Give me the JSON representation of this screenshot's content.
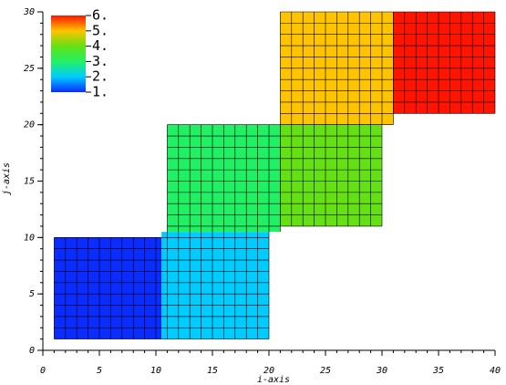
{
  "chart_data": {
    "type": "mesh",
    "xlabel": "i-axis",
    "ylabel": "j-axis",
    "xlim": [
      0,
      40
    ],
    "xticks": [
      0,
      5,
      10,
      15,
      20,
      25,
      30,
      35,
      40
    ],
    "ylim": [
      0,
      30
    ],
    "yticks": [
      0,
      5,
      10,
      15,
      20,
      25,
      30
    ],
    "colorbar": {
      "range": [
        1,
        6
      ],
      "ticks": [
        {
          "value": 1,
          "label": "1."
        },
        {
          "value": 2,
          "label": "2."
        },
        {
          "value": 3,
          "label": "3."
        },
        {
          "value": 4,
          "label": "4."
        },
        {
          "value": 5,
          "label": "5."
        },
        {
          "value": 6,
          "label": "6."
        }
      ],
      "colors": [
        "#0a2cff",
        "#00ccff",
        "#22f064",
        "#64e014",
        "#ffc400",
        "#ff1400"
      ]
    },
    "regions": [
      {
        "x": [
          1,
          10.5
        ],
        "y": [
          1,
          10
        ],
        "value": 1
      },
      {
        "x": [
          10.5,
          20
        ],
        "y": [
          1,
          10.5
        ],
        "value": 2
      },
      {
        "x": [
          11,
          21
        ],
        "y": [
          10.5,
          20
        ],
        "value": 3
      },
      {
        "x": [
          21,
          30
        ],
        "y": [
          11,
          20
        ],
        "value": 4
      },
      {
        "x": [
          21,
          31
        ],
        "y": [
          20,
          30
        ],
        "value": 5
      },
      {
        "x": [
          31,
          40
        ],
        "y": [
          21,
          30
        ],
        "value": 6
      }
    ]
  }
}
